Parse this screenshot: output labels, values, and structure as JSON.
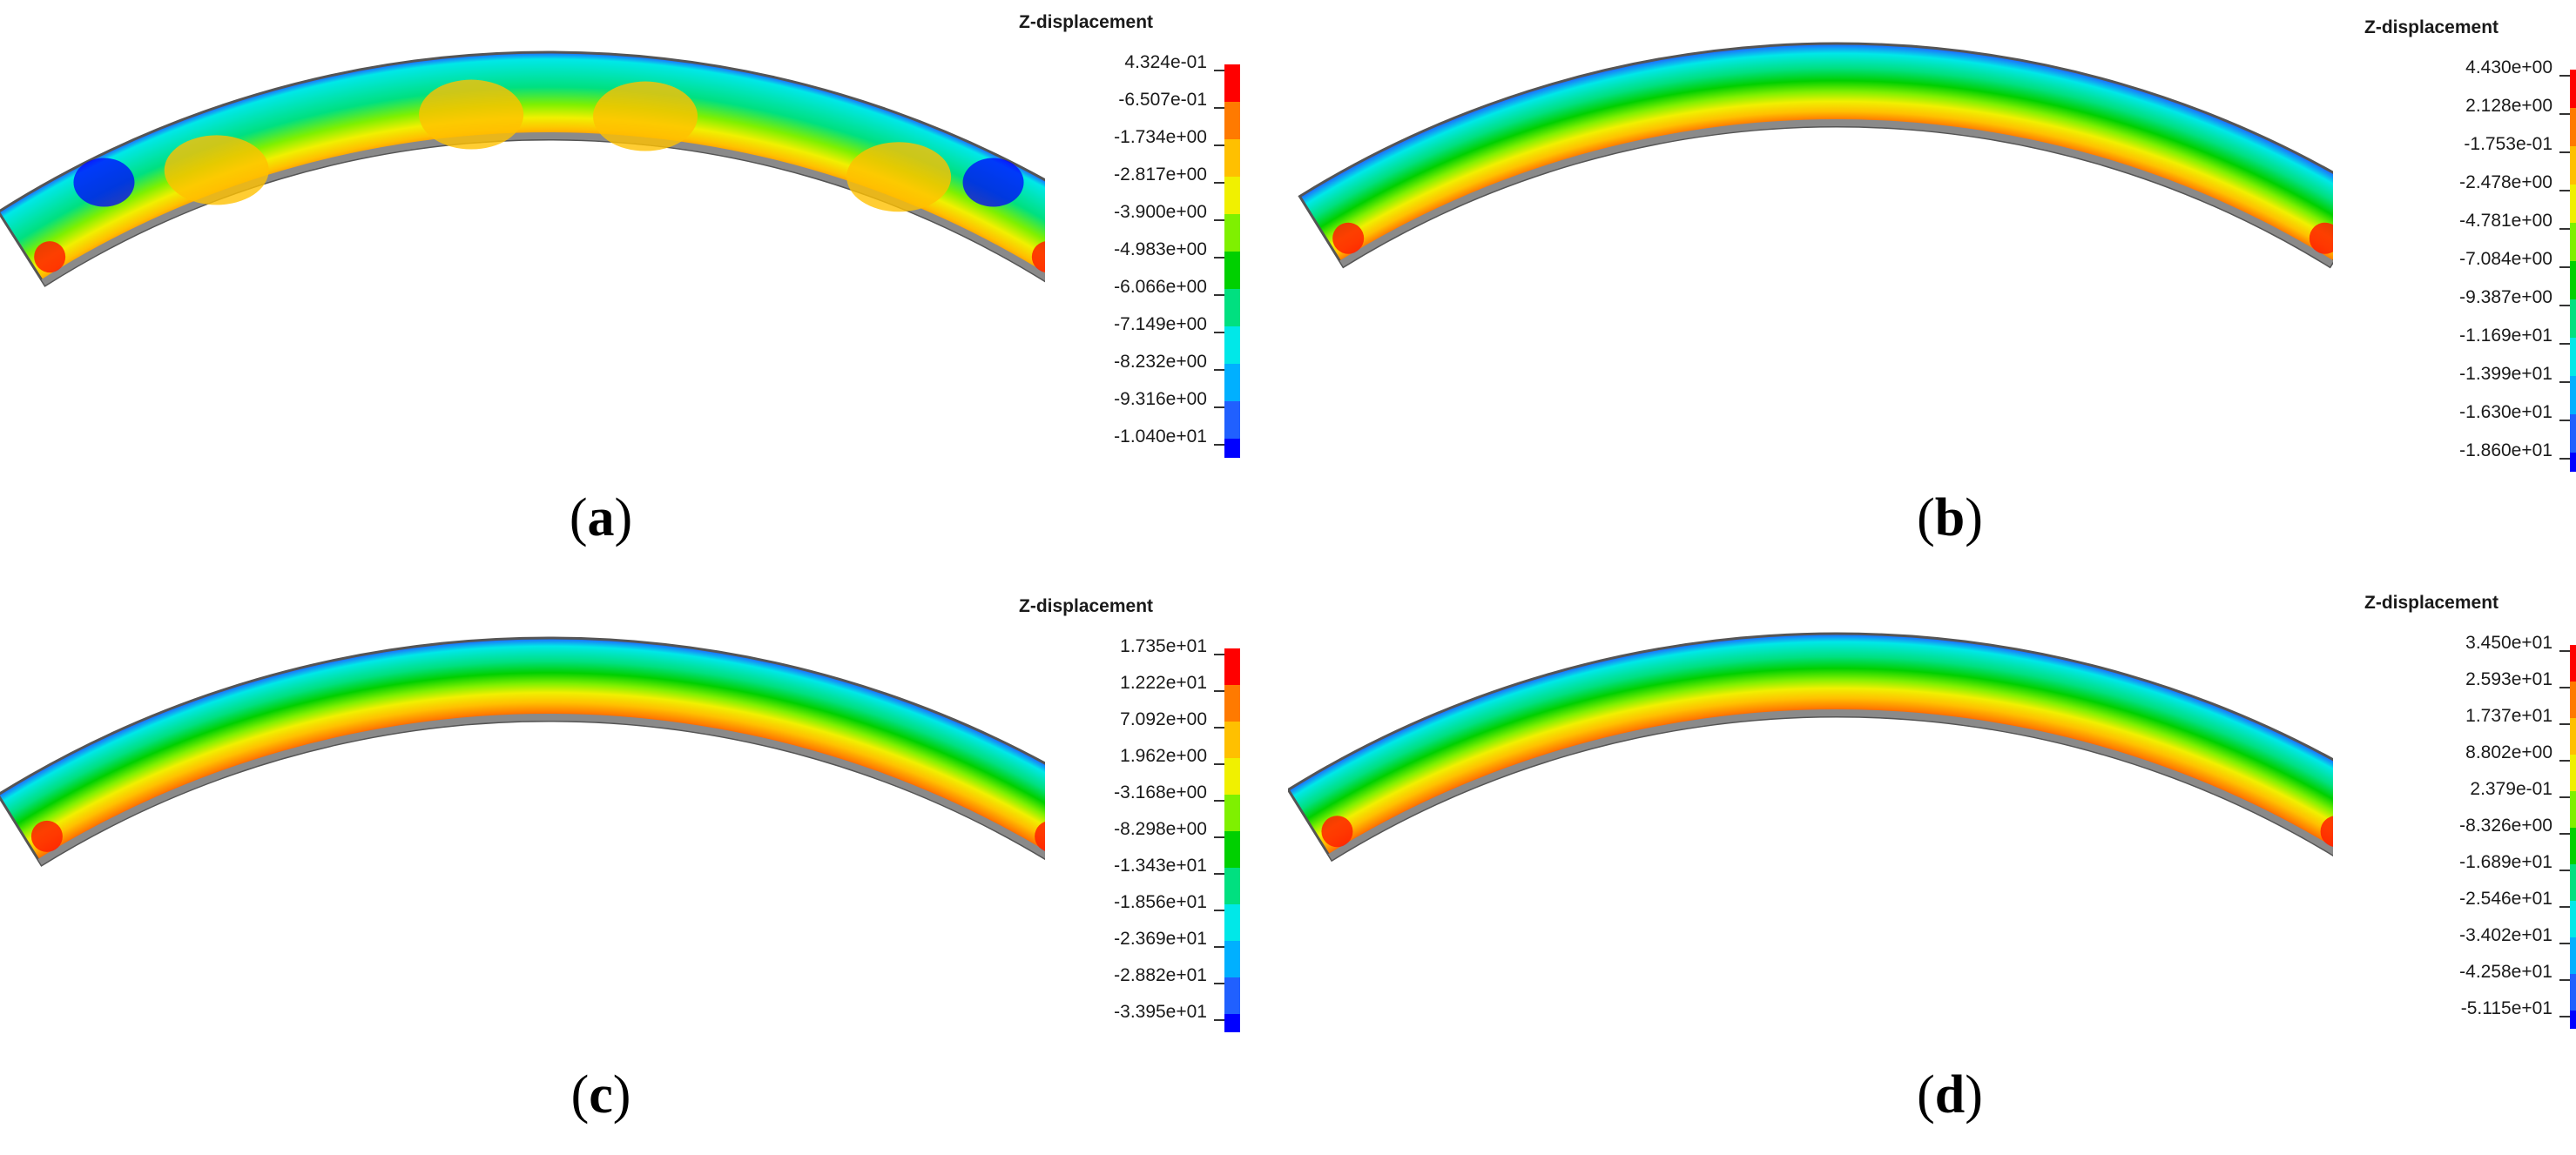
{
  "colors": {
    "scale": [
      "#ff0000",
      "#ff7a00",
      "#ffc000",
      "#f0f000",
      "#7ff000",
      "#00d000",
      "#00e080",
      "#00e8e8",
      "#00b0ff",
      "#2060ff",
      "#0000ff"
    ],
    "outline": "#555555"
  },
  "panels": [
    {
      "id": "a",
      "caption_letter": "a",
      "legend": {
        "title": "Z-displacement",
        "ticks": [
          "4.324e-01",
          "-6.507e-01",
          "-1.734e+00",
          "-2.817e+00",
          "-3.900e+00",
          "-4.983e+00",
          "-6.066e+00",
          "-7.149e+00",
          "-8.232e+00",
          "-9.316e+00",
          "-1.040e+01"
        ]
      }
    },
    {
      "id": "b",
      "caption_letter": "b",
      "legend": {
        "title": "Z-displacement",
        "ticks": [
          "4.430e+00",
          "2.128e+00",
          "-1.753e-01",
          "-2.478e+00",
          "-4.781e+00",
          "-7.084e+00",
          "-9.387e+00",
          "-1.169e+01",
          "-1.399e+01",
          "-1.630e+01",
          "-1.860e+01"
        ]
      }
    },
    {
      "id": "c",
      "caption_letter": "c",
      "legend": {
        "title": "Z-displacement",
        "ticks": [
          "1.735e+01",
          "1.222e+01",
          "7.092e+00",
          "1.962e+00",
          "-3.168e+00",
          "-8.298e+00",
          "-1.343e+01",
          "-1.856e+01",
          "-2.369e+01",
          "-2.882e+01",
          "-3.395e+01"
        ]
      }
    },
    {
      "id": "d",
      "caption_letter": "d",
      "legend": {
        "title": "Z-displacement",
        "ticks": [
          "3.450e+01",
          "2.593e+01",
          "1.737e+01",
          "8.802e+00",
          "2.379e-01",
          "-8.326e+00",
          "-1.689e+01",
          "-2.546e+01",
          "-3.402e+01",
          "-4.258e+01",
          "-5.115e+01"
        ]
      }
    }
  ]
}
